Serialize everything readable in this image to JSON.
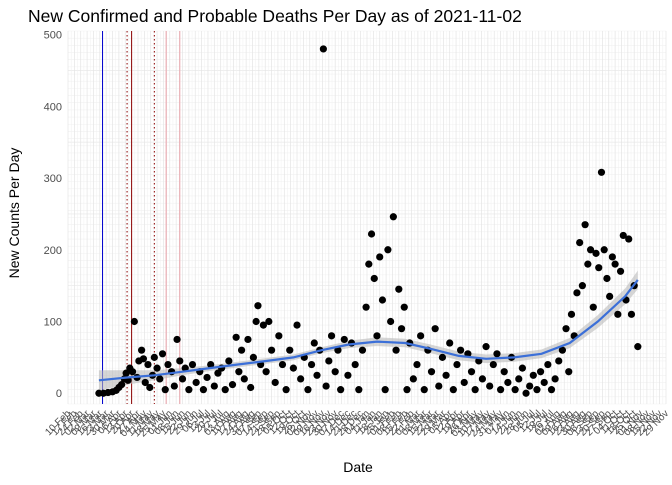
{
  "chart_data": {
    "type": "scatter",
    "title": "New Confirmed and Probable Deaths Per Day as of 2021-11-02",
    "xlabel": "Date",
    "ylabel": "New Counts Per Day",
    "ylim": [
      -15,
      505
    ],
    "xlim": [
      "2020-02-10",
      "2021-11-29"
    ],
    "yticks": [
      0,
      100,
      200,
      300,
      400,
      500
    ],
    "xticks": [
      "10 Feb",
      "17 Feb",
      "24 Feb",
      "02 Mar",
      "09 Mar",
      "16 Mar",
      "23 Mar",
      "30 Mar",
      "06 Apr",
      "13 Apr",
      "20 Apr",
      "27 Apr",
      "04 May",
      "11 May",
      "18 May",
      "25 May",
      "01 Jun",
      "08 Jun",
      "15 Jun",
      "22 Jun",
      "29 Jun",
      "06 Jul",
      "13 Jul",
      "20 Jul",
      "27 Jul",
      "03 Aug",
      "10 Aug",
      "17 Aug",
      "24 Aug",
      "31 Aug",
      "07 Sep",
      "14 Sep",
      "21 Sep",
      "28 Sep",
      "05 Oct",
      "12 Oct",
      "19 Oct",
      "26 Oct",
      "02 Nov",
      "09 Nov",
      "16 Nov",
      "23 Nov",
      "30 Nov",
      "07 Dec",
      "14 Dec",
      "21 Dec",
      "28 Dec",
      "04 Jan",
      "11 Jan",
      "18 Jan",
      "25 Jan",
      "01 Feb",
      "08 Feb",
      "15 Feb",
      "22 Feb",
      "01 Mar",
      "08 Mar",
      "15 Mar",
      "22 Mar",
      "29 Mar",
      "05 Apr",
      "12 Apr",
      "19 Apr",
      "26 Apr",
      "03 May",
      "10 May",
      "17 May",
      "24 May",
      "31 May",
      "07 Jun",
      "14 Jun",
      "21 Jun",
      "28 Jun",
      "05 Jul",
      "12 Jul",
      "19 Jul",
      "26 Jul",
      "02 Aug",
      "09 Aug",
      "16 Aug",
      "23 Aug",
      "30 Aug",
      "06 Sep",
      "13 Sep",
      "20 Sep",
      "27 Sep",
      "04 Oct",
      "11 Oct",
      "18 Oct",
      "25 Oct",
      "01 Nov",
      "08 Nov",
      "15 Nov",
      "22 Nov",
      "29 Nov"
    ],
    "vlines": [
      {
        "date": "2020-03-19",
        "color": "#0000cc",
        "style": "solid"
      },
      {
        "date": "2020-04-20",
        "color": "#8b0000",
        "style": "solid"
      },
      {
        "date": "2020-04-15",
        "color": "#8b0000",
        "style": "dotted"
      },
      {
        "date": "2020-05-15",
        "color": "#8b0000",
        "style": "dotted"
      },
      {
        "date": "2020-05-28",
        "color": "#e8a0a8",
        "style": "solid"
      },
      {
        "date": "2020-06-12",
        "color": "#e8a0a8",
        "style": "solid"
      }
    ],
    "series": [
      {
        "kind": "points",
        "color": "#000000",
        "points": [
          [
            "2020-03-15",
            0
          ],
          [
            "2020-03-20",
            0
          ],
          [
            "2020-03-25",
            1
          ],
          [
            "2020-03-30",
            2
          ],
          [
            "2020-04-03",
            4
          ],
          [
            "2020-04-06",
            8
          ],
          [
            "2020-04-09",
            12
          ],
          [
            "2020-04-12",
            20
          ],
          [
            "2020-04-14",
            28
          ],
          [
            "2020-04-16",
            18
          ],
          [
            "2020-04-18",
            35
          ],
          [
            "2020-04-21",
            30
          ],
          [
            "2020-04-23",
            100
          ],
          [
            "2020-04-26",
            22
          ],
          [
            "2020-04-28",
            45
          ],
          [
            "2020-05-01",
            60
          ],
          [
            "2020-05-03",
            48
          ],
          [
            "2020-05-05",
            15
          ],
          [
            "2020-05-08",
            40
          ],
          [
            "2020-05-10",
            8
          ],
          [
            "2020-05-13",
            25
          ],
          [
            "2020-05-15",
            50
          ],
          [
            "2020-05-18",
            35
          ],
          [
            "2020-05-21",
            20
          ],
          [
            "2020-05-24",
            55
          ],
          [
            "2020-05-27",
            5
          ],
          [
            "2020-05-30",
            40
          ],
          [
            "2020-06-03",
            30
          ],
          [
            "2020-06-06",
            10
          ],
          [
            "2020-06-09",
            75
          ],
          [
            "2020-06-12",
            45
          ],
          [
            "2020-06-15",
            20
          ],
          [
            "2020-06-18",
            35
          ],
          [
            "2020-06-22",
            5
          ],
          [
            "2020-06-26",
            40
          ],
          [
            "2020-06-30",
            15
          ],
          [
            "2020-07-04",
            30
          ],
          [
            "2020-07-08",
            5
          ],
          [
            "2020-07-12",
            22
          ],
          [
            "2020-07-16",
            40
          ],
          [
            "2020-07-20",
            10
          ],
          [
            "2020-07-24",
            28
          ],
          [
            "2020-07-28",
            35
          ],
          [
            "2020-08-01",
            5
          ],
          [
            "2020-08-05",
            45
          ],
          [
            "2020-08-09",
            12
          ],
          [
            "2020-08-13",
            78
          ],
          [
            "2020-08-16",
            30
          ],
          [
            "2020-08-19",
            60
          ],
          [
            "2020-08-22",
            20
          ],
          [
            "2020-08-26",
            75
          ],
          [
            "2020-08-29",
            8
          ],
          [
            "2020-09-01",
            50
          ],
          [
            "2020-09-04",
            100
          ],
          [
            "2020-09-06",
            122
          ],
          [
            "2020-09-09",
            40
          ],
          [
            "2020-09-12",
            95
          ],
          [
            "2020-09-15",
            30
          ],
          [
            "2020-09-18",
            100
          ],
          [
            "2020-09-21",
            60
          ],
          [
            "2020-09-25",
            15
          ],
          [
            "2020-09-29",
            80
          ],
          [
            "2020-10-03",
            40
          ],
          [
            "2020-10-07",
            5
          ],
          [
            "2020-10-11",
            60
          ],
          [
            "2020-10-15",
            35
          ],
          [
            "2020-10-19",
            95
          ],
          [
            "2020-10-23",
            20
          ],
          [
            "2020-10-27",
            50
          ],
          [
            "2020-10-31",
            5
          ],
          [
            "2020-11-04",
            40
          ],
          [
            "2020-11-07",
            70
          ],
          [
            "2020-11-10",
            25
          ],
          [
            "2020-11-13",
            60
          ],
          [
            "2020-11-17",
            480
          ],
          [
            "2020-11-20",
            10
          ],
          [
            "2020-11-23",
            45
          ],
          [
            "2020-11-26",
            80
          ],
          [
            "2020-11-30",
            30
          ],
          [
            "2020-12-03",
            60
          ],
          [
            "2020-12-06",
            5
          ],
          [
            "2020-12-10",
            75
          ],
          [
            "2020-12-14",
            25
          ],
          [
            "2020-12-18",
            70
          ],
          [
            "2020-12-22",
            40
          ],
          [
            "2020-12-26",
            5
          ],
          [
            "2020-12-30",
            60
          ],
          [
            "2021-01-03",
            120
          ],
          [
            "2021-01-06",
            180
          ],
          [
            "2021-01-09",
            222
          ],
          [
            "2021-01-12",
            160
          ],
          [
            "2021-01-15",
            80
          ],
          [
            "2021-01-18",
            190
          ],
          [
            "2021-01-21",
            130
          ],
          [
            "2021-01-24",
            5
          ],
          [
            "2021-01-27",
            200
          ],
          [
            "2021-01-30",
            100
          ],
          [
            "2021-02-02",
            246
          ],
          [
            "2021-02-05",
            60
          ],
          [
            "2021-02-08",
            145
          ],
          [
            "2021-02-11",
            90
          ],
          [
            "2021-02-14",
            120
          ],
          [
            "2021-02-17",
            5
          ],
          [
            "2021-02-20",
            70
          ],
          [
            "2021-02-24",
            20
          ],
          [
            "2021-02-28",
            40
          ],
          [
            "2021-03-04",
            80
          ],
          [
            "2021-03-08",
            5
          ],
          [
            "2021-03-12",
            60
          ],
          [
            "2021-03-16",
            30
          ],
          [
            "2021-03-20",
            90
          ],
          [
            "2021-03-24",
            10
          ],
          [
            "2021-03-28",
            50
          ],
          [
            "2021-04-01",
            25
          ],
          [
            "2021-04-05",
            70
          ],
          [
            "2021-04-09",
            5
          ],
          [
            "2021-04-13",
            40
          ],
          [
            "2021-04-17",
            60
          ],
          [
            "2021-04-21",
            15
          ],
          [
            "2021-04-25",
            55
          ],
          [
            "2021-04-29",
            30
          ],
          [
            "2021-05-03",
            5
          ],
          [
            "2021-05-07",
            45
          ],
          [
            "2021-05-11",
            20
          ],
          [
            "2021-05-15",
            65
          ],
          [
            "2021-05-19",
            10
          ],
          [
            "2021-05-23",
            40
          ],
          [
            "2021-05-27",
            55
          ],
          [
            "2021-05-31",
            5
          ],
          [
            "2021-06-04",
            30
          ],
          [
            "2021-06-08",
            15
          ],
          [
            "2021-06-12",
            50
          ],
          [
            "2021-06-16",
            5
          ],
          [
            "2021-06-20",
            20
          ],
          [
            "2021-06-24",
            35
          ],
          [
            "2021-06-28",
            0
          ],
          [
            "2021-07-02",
            10
          ],
          [
            "2021-07-06",
            25
          ],
          [
            "2021-07-10",
            5
          ],
          [
            "2021-07-14",
            30
          ],
          [
            "2021-07-18",
            15
          ],
          [
            "2021-07-22",
            40
          ],
          [
            "2021-07-26",
            5
          ],
          [
            "2021-07-30",
            20
          ],
          [
            "2021-08-03",
            45
          ],
          [
            "2021-08-07",
            60
          ],
          [
            "2021-08-11",
            90
          ],
          [
            "2021-08-14",
            30
          ],
          [
            "2021-08-17",
            110
          ],
          [
            "2021-08-20",
            80
          ],
          [
            "2021-08-23",
            140
          ],
          [
            "2021-08-26",
            210
          ],
          [
            "2021-08-29",
            150
          ],
          [
            "2021-09-01",
            235
          ],
          [
            "2021-09-04",
            180
          ],
          [
            "2021-09-07",
            200
          ],
          [
            "2021-09-10",
            120
          ],
          [
            "2021-09-13",
            195
          ],
          [
            "2021-09-16",
            175
          ],
          [
            "2021-09-19",
            308
          ],
          [
            "2021-09-22",
            200
          ],
          [
            "2021-09-25",
            160
          ],
          [
            "2021-09-28",
            135
          ],
          [
            "2021-10-01",
            190
          ],
          [
            "2021-10-04",
            180
          ],
          [
            "2021-10-07",
            110
          ],
          [
            "2021-10-10",
            170
          ],
          [
            "2021-10-13",
            220
          ],
          [
            "2021-10-16",
            130
          ],
          [
            "2021-10-19",
            215
          ],
          [
            "2021-10-22",
            110
          ],
          [
            "2021-10-25",
            150
          ],
          [
            "2021-10-29",
            65
          ]
        ]
      },
      {
        "kind": "smooth",
        "color": "#3b6fd8",
        "band_color": "#bbbbbb",
        "points": [
          [
            "2020-03-15",
            18
          ],
          [
            "2020-04-15",
            22
          ],
          [
            "2020-05-15",
            25
          ],
          [
            "2020-06-15",
            30
          ],
          [
            "2020-07-15",
            35
          ],
          [
            "2020-08-15",
            40
          ],
          [
            "2020-09-15",
            45
          ],
          [
            "2020-10-15",
            50
          ],
          [
            "2020-11-15",
            60
          ],
          [
            "2020-12-15",
            68
          ],
          [
            "2021-01-15",
            72
          ],
          [
            "2021-02-15",
            70
          ],
          [
            "2021-03-15",
            62
          ],
          [
            "2021-04-15",
            52
          ],
          [
            "2021-05-15",
            48
          ],
          [
            "2021-06-15",
            50
          ],
          [
            "2021-07-15",
            55
          ],
          [
            "2021-08-15",
            70
          ],
          [
            "2021-09-15",
            100
          ],
          [
            "2021-10-15",
            135
          ],
          [
            "2021-10-29",
            158
          ]
        ],
        "band": [
          [
            4,
            32
          ],
          [
            12,
            32
          ],
          [
            18,
            32
          ],
          [
            25,
            35
          ],
          [
            31,
            39
          ],
          [
            36,
            44
          ],
          [
            41,
            49
          ],
          [
            46,
            54
          ],
          [
            56,
            64
          ],
          [
            63,
            73
          ],
          [
            66,
            78
          ],
          [
            64,
            76
          ],
          [
            56,
            68
          ],
          [
            46,
            58
          ],
          [
            42,
            54
          ],
          [
            44,
            56
          ],
          [
            49,
            61
          ],
          [
            63,
            77
          ],
          [
            91,
            109
          ],
          [
            124,
            146
          ],
          [
            145,
            171
          ]
        ]
      }
    ]
  }
}
